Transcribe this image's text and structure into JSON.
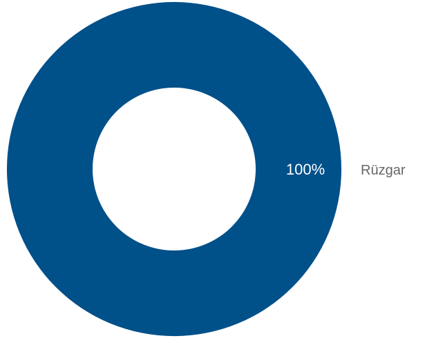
{
  "chart_data": {
    "type": "pie",
    "title": "",
    "categories": [
      "Rüzgar"
    ],
    "values": [
      100
    ],
    "value_labels": [
      "100%"
    ],
    "colors": [
      "#00508a"
    ],
    "legend_placement": "right"
  }
}
